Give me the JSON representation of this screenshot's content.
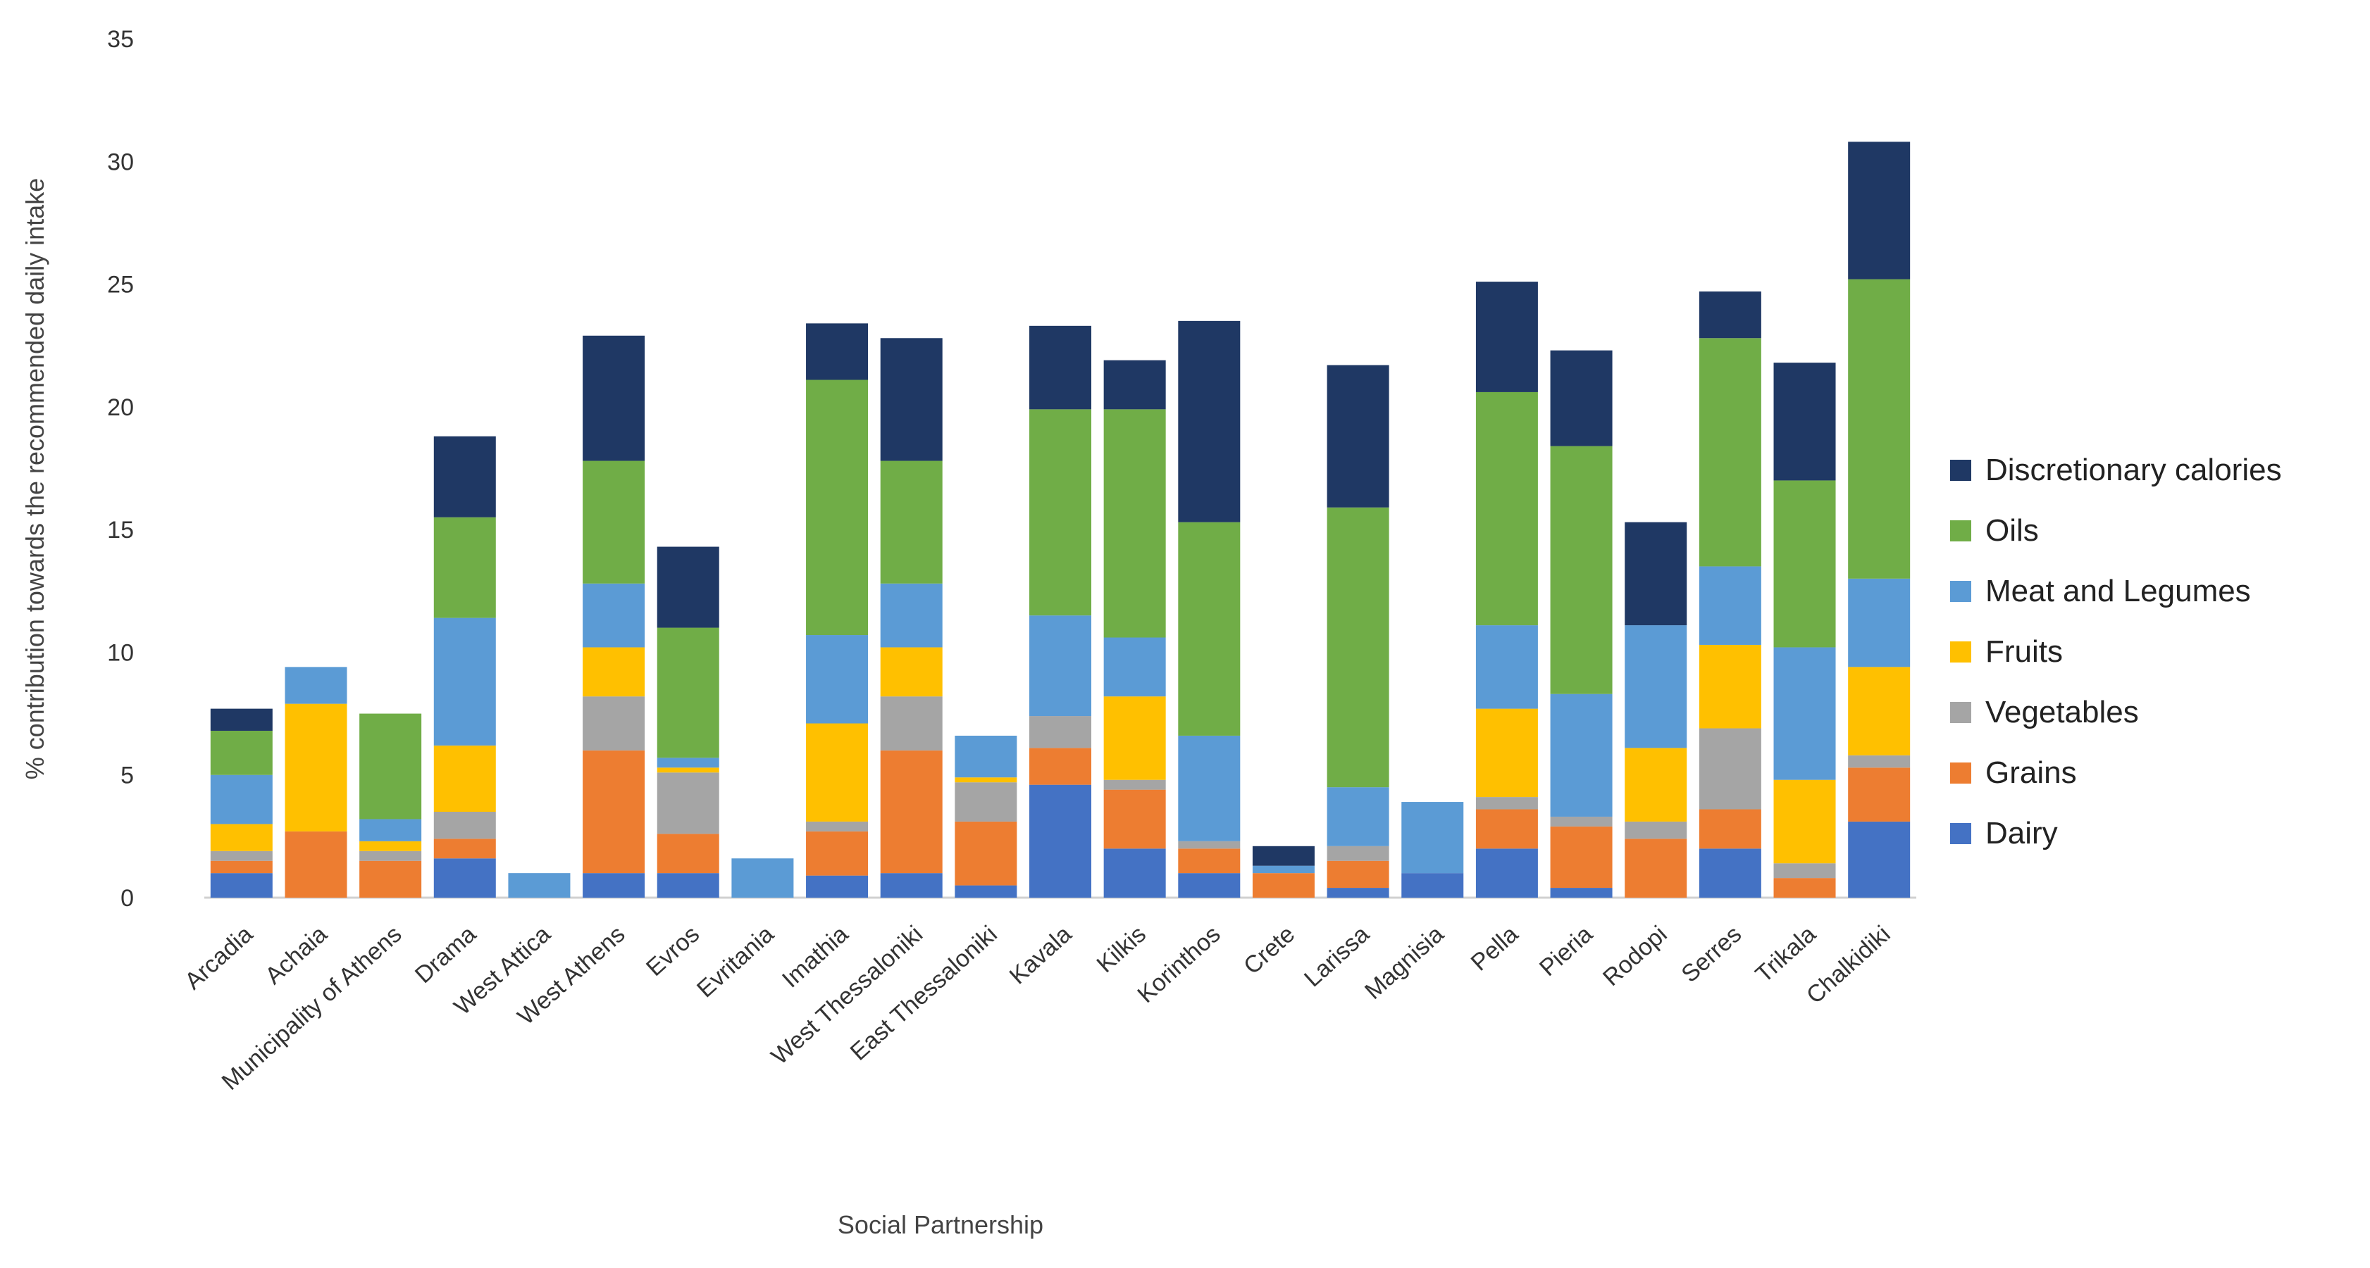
{
  "chart_data": {
    "type": "bar",
    "stacked": true,
    "title": "",
    "xlabel": "Social Partnership",
    "ylabel": "% contribution towards the recommended daily intake",
    "ylim": [
      0,
      35
    ],
    "yticks": [
      0,
      5,
      10,
      15,
      20,
      25,
      30,
      35
    ],
    "grid": false,
    "legend_position": "right",
    "categories": [
      "Arcadia",
      "Achaia",
      "Municipality of Athens",
      "Drama",
      "West Attica",
      "West Athens",
      "Evros",
      "Evritania",
      "Imathia",
      "West Thessaloniki",
      "East Thessaloniki",
      "Kavala",
      "Kilkis",
      "Korinthos",
      "Crete",
      "Larissa",
      "Magnisia",
      "Pella",
      "Pieria",
      "Rodopi",
      "Serres",
      "Trikala",
      "Chalkidiki"
    ],
    "series": [
      {
        "name": "Dairy",
        "color": "#4472C4",
        "values": [
          1.0,
          0.0,
          0.0,
          1.6,
          0.0,
          1.0,
          1.0,
          0.0,
          0.9,
          1.0,
          0.5,
          4.6,
          2.0,
          1.0,
          0.0,
          0.4,
          1.0,
          2.0,
          0.4,
          0.0,
          2.0,
          0.0,
          3.1
        ]
      },
      {
        "name": "Grains",
        "color": "#ED7D31",
        "values": [
          0.5,
          2.7,
          1.5,
          0.8,
          0.0,
          5.0,
          1.6,
          0.0,
          1.8,
          5.0,
          2.6,
          1.5,
          2.4,
          1.0,
          1.0,
          1.1,
          0.0,
          1.6,
          2.5,
          2.4,
          1.6,
          0.8,
          2.2
        ]
      },
      {
        "name": "Vegetables",
        "color": "#A5A5A5",
        "values": [
          0.4,
          0.0,
          0.4,
          1.1,
          0.0,
          2.2,
          2.5,
          0.0,
          0.4,
          2.2,
          1.6,
          1.3,
          0.4,
          0.3,
          0.0,
          0.6,
          0.0,
          0.5,
          0.4,
          0.7,
          3.3,
          0.6,
          0.5
        ]
      },
      {
        "name": "Fruits",
        "color": "#FFC000",
        "values": [
          1.1,
          5.2,
          0.4,
          2.7,
          0.0,
          2.0,
          0.2,
          0.0,
          4.0,
          2.0,
          0.2,
          0.0,
          3.4,
          0.0,
          0.0,
          0.0,
          0.0,
          3.6,
          0.0,
          3.0,
          3.4,
          3.4,
          3.6
        ]
      },
      {
        "name": "Meat and Legumes",
        "color": "#5B9BD5",
        "values": [
          2.0,
          1.5,
          0.9,
          5.2,
          1.0,
          2.6,
          0.4,
          1.6,
          3.6,
          2.6,
          1.7,
          4.1,
          2.4,
          4.3,
          0.3,
          2.4,
          2.9,
          3.4,
          5.0,
          5.0,
          3.2,
          5.4,
          3.6
        ]
      },
      {
        "name": "Oils",
        "color": "#70AD47",
        "values": [
          1.8,
          0.0,
          4.3,
          4.1,
          0.0,
          5.0,
          5.3,
          0.0,
          10.4,
          5.0,
          0.0,
          8.4,
          9.3,
          8.7,
          0.0,
          11.4,
          0.0,
          9.5,
          10.1,
          0.0,
          9.3,
          6.8,
          12.2
        ]
      },
      {
        "name": "Discretionary calories",
        "color": "#1F3864",
        "values": [
          0.9,
          0.0,
          0.0,
          3.3,
          0.0,
          5.1,
          3.3,
          0.0,
          2.3,
          5.0,
          0.0,
          3.4,
          2.0,
          8.2,
          0.8,
          5.8,
          0.0,
          4.5,
          3.9,
          4.2,
          1.9,
          4.8,
          5.6
        ]
      }
    ]
  }
}
